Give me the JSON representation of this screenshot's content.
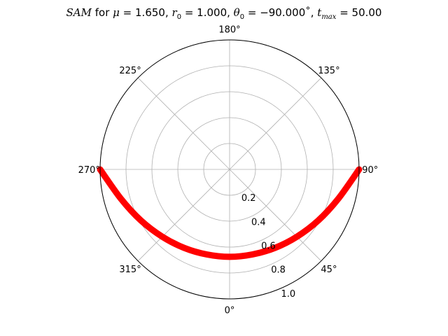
{
  "chart_data": {
    "type": "line",
    "projection": "polar",
    "title": "SAM for μ = 1.650, r0 = 1.000, θ0 = −90.000˚, tmax = 50.00",
    "title_parts": {
      "name": "SAM",
      "mu": "1.650",
      "r0": "1.000",
      "theta0": "−90.000˚",
      "tmax": "50.00"
    },
    "theta_zero_location": "bottom",
    "theta_direction": "counterclockwise",
    "theta_tick_labels": [
      "0°",
      "45°",
      "90°",
      "135°",
      "180°",
      "225°",
      "270°",
      "315°"
    ],
    "r_tick_labels": [
      "0.2",
      "0.4",
      "0.6",
      "0.8",
      "1.0"
    ],
    "r_ticks": [
      0.2,
      0.4,
      0.6,
      0.8,
      1.0
    ],
    "rlim": [
      0,
      1.0
    ],
    "grid": true,
    "series": [
      {
        "color": "#ff0000",
        "points": [
          {
            "theta_deg": -90,
            "r": 1.0
          },
          {
            "theta_deg": -75,
            "r": 0.87
          },
          {
            "theta_deg": -60,
            "r": 0.79
          },
          {
            "theta_deg": -45,
            "r": 0.735
          },
          {
            "theta_deg": -30,
            "r": 0.7
          },
          {
            "theta_deg": -15,
            "r": 0.68
          },
          {
            "theta_deg": 0,
            "r": 0.675
          },
          {
            "theta_deg": 15,
            "r": 0.68
          },
          {
            "theta_deg": 30,
            "r": 0.7
          },
          {
            "theta_deg": 45,
            "r": 0.735
          },
          {
            "theta_deg": 60,
            "r": 0.79
          },
          {
            "theta_deg": 75,
            "r": 0.87
          },
          {
            "theta_deg": 90,
            "r": 1.0
          }
        ]
      }
    ]
  }
}
